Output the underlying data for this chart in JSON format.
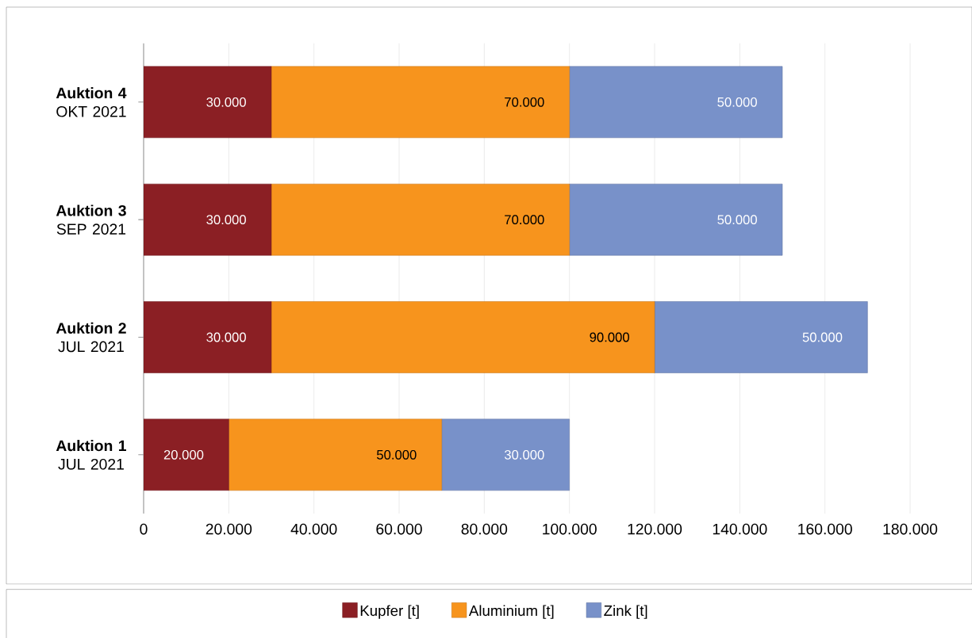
{
  "chart_data": {
    "type": "bar",
    "orientation": "horizontal",
    "stacked": true,
    "categories": [
      "**Auktion 4** OKT 2021",
      "**Auktion 3** SEP 2021",
      "**Auktion 2** JUL 2021",
      "**Auktion 1** JUL 2021"
    ],
    "series": [
      {
        "name": "Kupfer [t]",
        "color": "#8b1f24",
        "values": [
          30000,
          30000,
          30000,
          20000
        ],
        "value_labels": [
          "30.000",
          "30.000",
          "30.000",
          "20.000"
        ]
      },
      {
        "name": "Aluminium [t]",
        "color": "#f7941d",
        "values": [
          70000,
          70000,
          90000,
          50000
        ],
        "value_labels": [
          "70.000",
          "70.000",
          "90.000",
          "50.000"
        ]
      },
      {
        "name": "Zink [t]",
        "color": "#7891c9",
        "values": [
          50000,
          50000,
          50000,
          30000
        ],
        "value_labels": [
          "50.000",
          "50.000",
          "50.000",
          "30.000"
        ]
      }
    ],
    "xlim": [
      0,
      180000
    ],
    "xticks": [
      0,
      {
        "value": 20000,
        "label": "20.000"
      },
      {
        "value": 40000,
        "label": "40.000"
      },
      {
        "value": 60000,
        "label": "60.000"
      },
      {
        "value": 80000,
        "label": "80.000"
      },
      {
        "value": 100000,
        "label": "100.000"
      },
      {
        "value": 120000,
        "label": "120.000"
      },
      {
        "value": 140000,
        "label": "140.000"
      },
      {
        "value": 160000,
        "label": "160.000"
      },
      {
        "value": 180000,
        "label": "180.000"
      }
    ],
    "grid": "x",
    "legend": "bottom"
  }
}
